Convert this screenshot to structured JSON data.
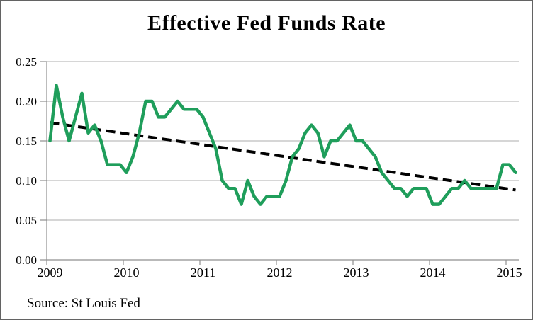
{
  "frame": {
    "title": "Effective Fed Funds Rate",
    "source_note": "Source: St Louis Fed"
  },
  "chart_data": {
    "type": "line",
    "title": "Effective Fed Funds Rate",
    "source": "Source: St Louis Fed",
    "x_start": "2009-01",
    "x_end": "2015-02",
    "x_frequency": "monthly",
    "xlabel": "",
    "ylabel": "",
    "ylim": [
      0,
      0.25
    ],
    "grid": "horizontal",
    "legend": "none",
    "x_tick_labels": [
      "2009",
      "2010",
      "2011",
      "2012",
      "2013",
      "2014",
      "2015"
    ],
    "x_tick_interval_months": 12,
    "y_ticks": [
      {
        "label": "0.25",
        "value": 0.25
      },
      {
        "label": "0.20",
        "value": 0.2
      },
      {
        "label": "0.15",
        "value": 0.15
      },
      {
        "label": "0.10",
        "value": 0.1
      },
      {
        "label": "0.05",
        "value": 0.05
      },
      {
        "label": "0.00",
        "value": 0.0
      }
    ],
    "series": [
      {
        "name": "Effective Fed Funds Rate",
        "style": "solid",
        "color": "#1f9e5b",
        "values": [
          0.15,
          0.22,
          0.18,
          0.15,
          0.18,
          0.21,
          0.16,
          0.17,
          0.15,
          0.12,
          0.12,
          0.12,
          0.11,
          0.13,
          0.16,
          0.2,
          0.2,
          0.18,
          0.18,
          0.19,
          0.2,
          0.19,
          0.19,
          0.19,
          0.18,
          0.16,
          0.14,
          0.1,
          0.09,
          0.09,
          0.07,
          0.1,
          0.08,
          0.07,
          0.08,
          0.08,
          0.08,
          0.1,
          0.13,
          0.14,
          0.16,
          0.17,
          0.16,
          0.13,
          0.15,
          0.15,
          0.16,
          0.17,
          0.15,
          0.15,
          0.14,
          0.13,
          0.11,
          0.1,
          0.09,
          0.09,
          0.08,
          0.09,
          0.09,
          0.09,
          0.07,
          0.07,
          0.08,
          0.09,
          0.09,
          0.1,
          0.09,
          0.09,
          0.09,
          0.09,
          0.09,
          0.12,
          0.12,
          0.11
        ]
      },
      {
        "name": "Linear trend",
        "style": "dashed",
        "color": "#000000",
        "endpoints": [
          0.173,
          0.088
        ]
      }
    ]
  },
  "colors": {
    "line": "#1f9e5b",
    "trend": "#000000",
    "gridline": "#bdbdbd",
    "axis": "#8f8f8f",
    "border": "#636363",
    "background": "#ffffff",
    "text": "#000000"
  }
}
